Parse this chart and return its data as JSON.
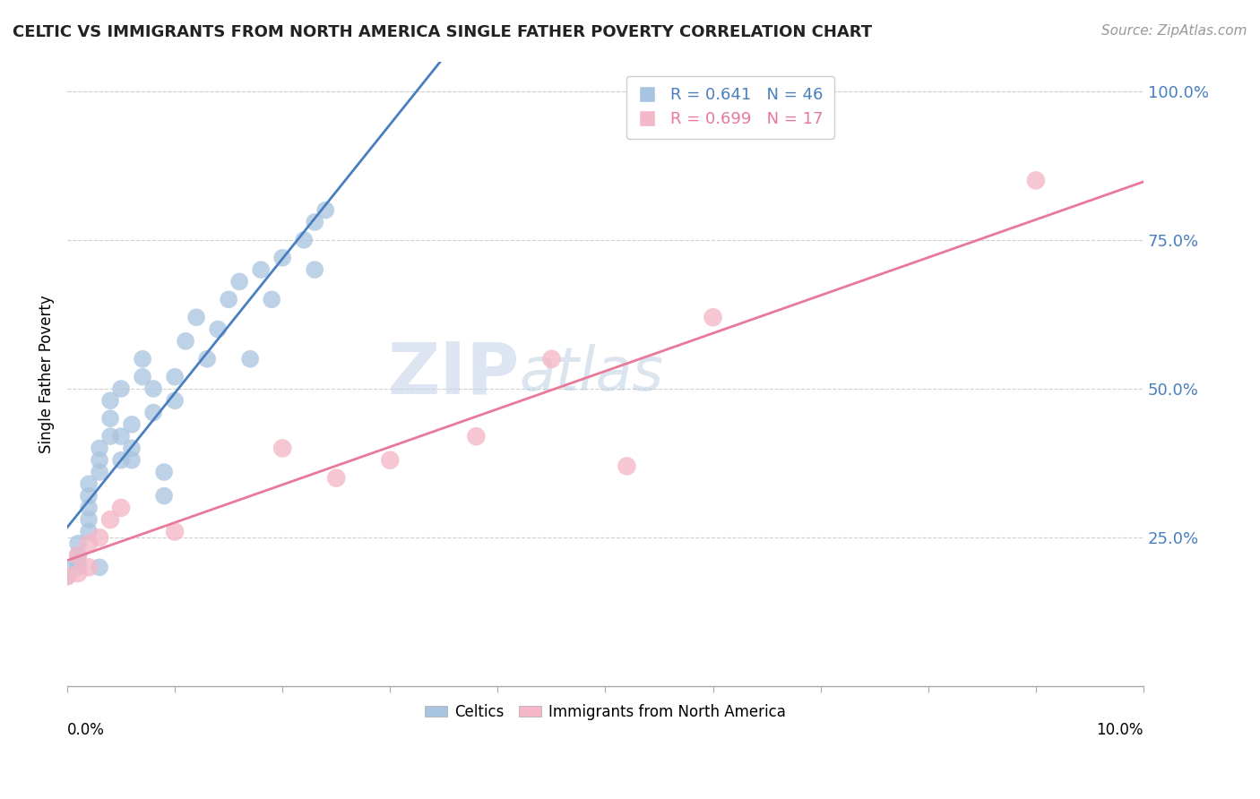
{
  "title": "CELTIC VS IMMIGRANTS FROM NORTH AMERICA SINGLE FATHER POVERTY CORRELATION CHART",
  "source": "Source: ZipAtlas.com",
  "ylabel": "Single Father Poverty",
  "right_yticks": [
    "100.0%",
    "75.0%",
    "50.0%",
    "25.0%"
  ],
  "right_ytick_vals": [
    1.0,
    0.75,
    0.5,
    0.25
  ],
  "celtics_color": "#a8c4e0",
  "immigrants_color": "#f4b8c8",
  "celtics_line_color": "#4a7fbf",
  "immigrants_line_color": "#e8799a",
  "watermark_zip": "ZIP",
  "watermark_atlas": "atlas",
  "celtics_x": [
    0.0,
    0.0,
    0.001,
    0.001,
    0.001,
    0.001,
    0.002,
    0.002,
    0.002,
    0.002,
    0.002,
    0.003,
    0.003,
    0.003,
    0.003,
    0.004,
    0.004,
    0.004,
    0.005,
    0.005,
    0.005,
    0.006,
    0.006,
    0.006,
    0.007,
    0.007,
    0.008,
    0.008,
    0.009,
    0.009,
    0.01,
    0.01,
    0.011,
    0.012,
    0.013,
    0.014,
    0.015,
    0.016,
    0.017,
    0.018,
    0.019,
    0.02,
    0.022,
    0.023,
    0.023,
    0.024
  ],
  "celtics_y": [
    0.185,
    0.195,
    0.2,
    0.21,
    0.22,
    0.24,
    0.26,
    0.28,
    0.3,
    0.32,
    0.34,
    0.36,
    0.38,
    0.4,
    0.2,
    0.42,
    0.45,
    0.48,
    0.38,
    0.42,
    0.5,
    0.38,
    0.4,
    0.44,
    0.52,
    0.55,
    0.46,
    0.5,
    0.32,
    0.36,
    0.48,
    0.52,
    0.58,
    0.62,
    0.55,
    0.6,
    0.65,
    0.68,
    0.55,
    0.7,
    0.65,
    0.72,
    0.75,
    0.78,
    0.7,
    0.8
  ],
  "immigrants_x": [
    0.0,
    0.001,
    0.001,
    0.002,
    0.002,
    0.003,
    0.004,
    0.005,
    0.01,
    0.02,
    0.025,
    0.03,
    0.038,
    0.045,
    0.052,
    0.06,
    0.09
  ],
  "immigrants_y": [
    0.185,
    0.19,
    0.22,
    0.2,
    0.24,
    0.25,
    0.28,
    0.3,
    0.26,
    0.4,
    0.35,
    0.38,
    0.42,
    0.55,
    0.37,
    0.62,
    0.85
  ],
  "xlim": [
    0.0,
    0.1
  ],
  "ylim": [
    0.0,
    1.05
  ],
  "background_color": "#ffffff",
  "grid_color": "#d0d0d0"
}
